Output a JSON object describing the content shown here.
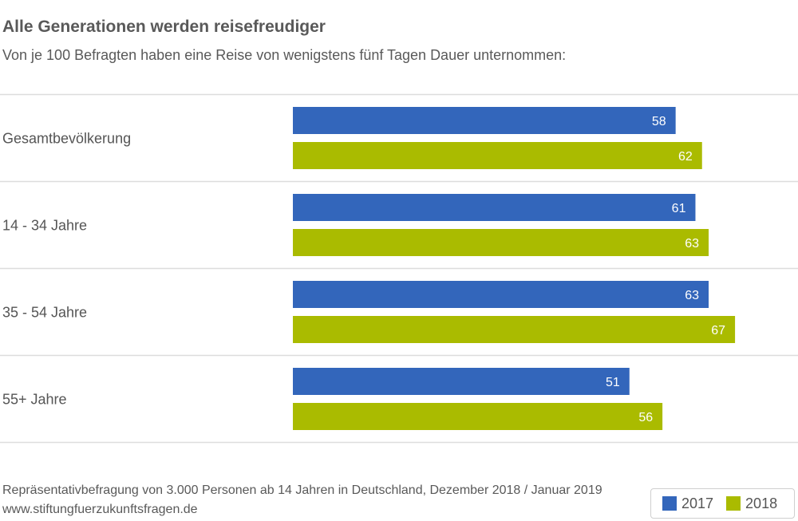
{
  "title": "Alle Generationen werden reisefreudiger",
  "subtitle": "Von je 100 Befragten haben eine Reise von wenigstens fünf Tagen Dauer unternommen:",
  "footnotes": [
    "Repräsentativbefragung von 3.000 Personen ab 14 Jahren in Deutschland, Dezember 2018 / Januar 2019",
    "www.stiftungfuerzukunftsfragen.de"
  ],
  "colors": {
    "series_2017": "#3366bb",
    "series_2018": "#aabb00",
    "gridline": "#dddddd"
  },
  "chart_data": {
    "type": "bar",
    "orientation": "horizontal",
    "categories": [
      "Gesamtbevölkerung",
      "14 - 34 Jahre",
      "35 - 54 Jahre",
      "55+ Jahre"
    ],
    "series": [
      {
        "name": "2017",
        "values": [
          58,
          61,
          63,
          51
        ]
      },
      {
        "name": "2018",
        "values": [
          62,
          63,
          67,
          56
        ]
      }
    ],
    "xlim": [
      0,
      70
    ],
    "data_labels": true,
    "legend": "bottom-right"
  }
}
